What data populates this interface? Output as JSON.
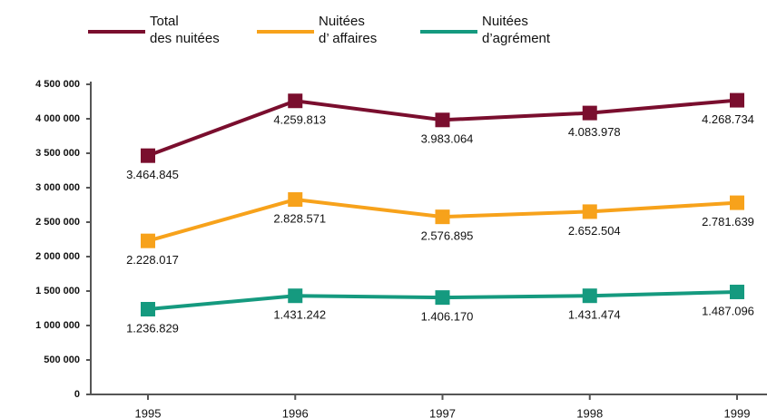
{
  "chart_data": {
    "type": "line",
    "categories": [
      "1995",
      "1996",
      "1997",
      "1998",
      "1999"
    ],
    "series": [
      {
        "name": "Total\ndes nuitées",
        "color": "#7a0e2e",
        "values": [
          3464845,
          4259813,
          3983064,
          4083978,
          4268734
        ],
        "value_labels": [
          "3.464.845",
          "4.259.813",
          "3.983.064",
          "4.083.978",
          "4.268.734"
        ]
      },
      {
        "name": "Nuitées\nd’ affaires",
        "color": "#f7a21b",
        "values": [
          2228017,
          2828571,
          2576895,
          2652504,
          2781639
        ],
        "value_labels": [
          "2.228.017",
          "2.828.571",
          "2.576.895",
          "2.652.504",
          "2.781.639"
        ]
      },
      {
        "name": "Nuitées\nd’agrément",
        "color": "#159a7f",
        "values": [
          1236829,
          1431242,
          1406170,
          1431474,
          1487096
        ],
        "value_labels": [
          "1.236.829",
          "1.431.242",
          "1.406.170",
          "1.431.474",
          "1.487.096"
        ]
      }
    ],
    "ylim": [
      0,
      4500000
    ],
    "yticks": [
      0,
      {
        "value": 500000,
        "label": "500 000"
      },
      {
        "value": 1000000,
        "label": "1 000 000"
      },
      {
        "value": 1500000,
        "label": "1 500 000"
      },
      {
        "value": 2000000,
        "label": "2 000 000"
      },
      {
        "value": 2500000,
        "label": "2 500 000"
      },
      {
        "value": 3000000,
        "label": "3 000 000"
      },
      {
        "value": 3500000,
        "label": "3 500 000"
      },
      {
        "value": 4000000,
        "label": "4 000 000"
      },
      {
        "value": 4500000,
        "label": "4 500 000"
      }
    ],
    "grid": false
  }
}
